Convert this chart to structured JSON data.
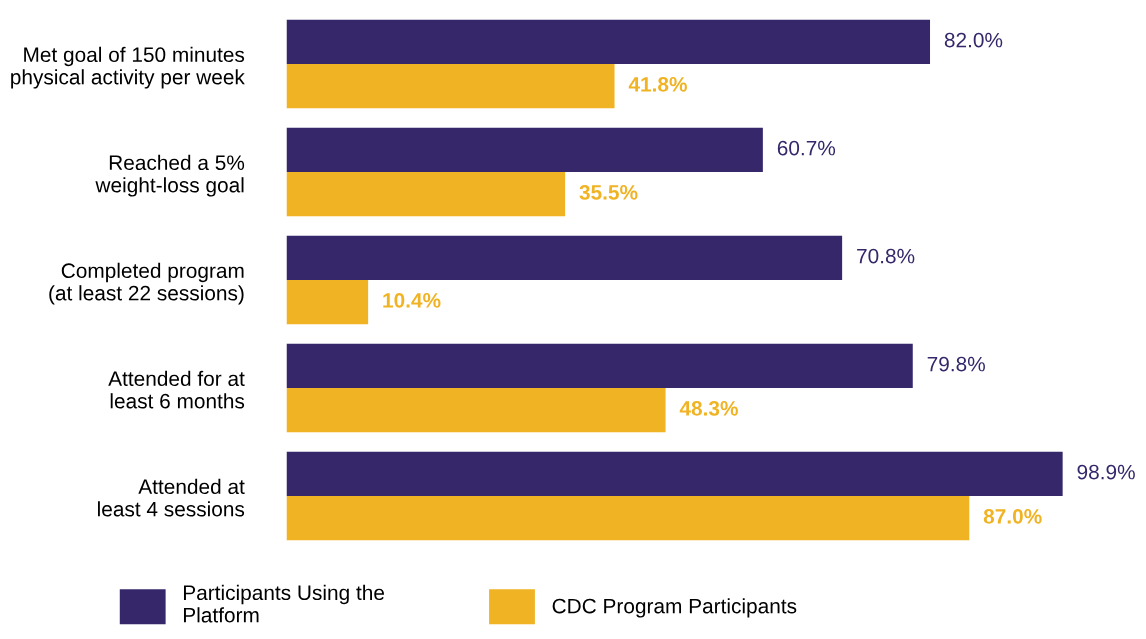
{
  "chart_data": {
    "type": "bar",
    "orientation": "horizontal",
    "categories": [
      "Met goal of 150 minutes\nphysical activity per week",
      "Reached a 5%\nweight-loss goal",
      "Completed program\n(at least 22 sessions)",
      "Attended for at\nleast 6 months",
      "Attended at\nleast 4 sessions"
    ],
    "series": [
      {
        "name": "Participants Using the\nPlatform",
        "color": "#35276a",
        "values": [
          82.0,
          60.7,
          70.8,
          79.8,
          98.9
        ],
        "value_labels": [
          "82.0%",
          "60.7%",
          "70.8%",
          "79.8%",
          "98.9%"
        ]
      },
      {
        "name": "CDC Program Participants",
        "color": "#f0b323",
        "values": [
          41.8,
          35.5,
          10.4,
          48.3,
          87.0
        ],
        "value_labels": [
          "41.8%",
          "35.5%",
          "10.4%",
          "48.3%",
          "87.0%"
        ]
      }
    ],
    "legend": "bottom",
    "grid": false,
    "tick_labels": "y"
  }
}
